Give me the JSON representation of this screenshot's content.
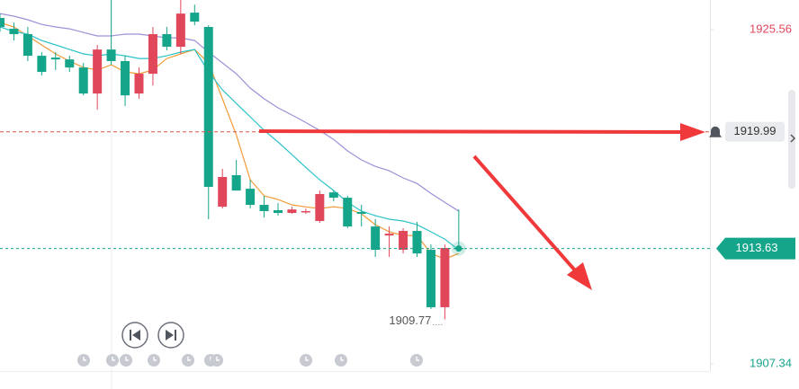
{
  "chart_data": {
    "type": "candlestick",
    "up_color": "#e0475b",
    "down_color": "#14a58b",
    "ylim": [
      1906.95,
      1927.18
    ],
    "yticks": [
      1907.34,
      1925.56
    ],
    "open": [
      1926.2,
      1925.61,
      1925.32,
      1924.14,
      1924.04,
      1923.94,
      1923.5,
      1922.08,
      1924.48,
      1923.85,
      1922.08,
      1923.16,
      1925.32,
      1924.63,
      1926.49,
      1925.71,
      1915.91,
      1917.63,
      1916.89,
      1916.01,
      1915.72,
      1915.57,
      1915.62,
      1915.13,
      1916.69,
      1916.4,
      1915.62,
      1914.83,
      1914.34,
      1913.56,
      1914.59,
      1913.56,
      1910.43,
      1913.66
    ],
    "high": [
      1926.44,
      1925.95,
      1925.71,
      1924.34,
      1924.34,
      1924.14,
      1923.75,
      1924.73,
      1927.18,
      1924.14,
      1923.5,
      1925.71,
      1925.71,
      1927.18,
      1926.93,
      1925.8,
      1917.97,
      1918.46,
      1917.38,
      1916.5,
      1916.11,
      1915.91,
      1915.81,
      1916.79,
      1916.79,
      1916.5,
      1916.01,
      1915.23,
      1914.83,
      1914.74,
      1915.08,
      1913.85,
      1913.85,
      1915.76
    ],
    "low": [
      1925.46,
      1924.97,
      1923.85,
      1923.06,
      1923.36,
      1923.26,
      1921.98,
      1921.2,
      1923.65,
      1921.4,
      1921.79,
      1922.52,
      1924.43,
      1924.24,
      1925.8,
      1915.23,
      1915.81,
      1916.79,
      1915.81,
      1915.32,
      1915.42,
      1915.52,
      1915.52,
      1915.03,
      1916.2,
      1914.74,
      1914.83,
      1913.17,
      1913.17,
      1913.36,
      1913.17,
      1910.33,
      1909.77,
      1913.56
    ],
    "close": [
      1925.71,
      1925.32,
      1924.14,
      1923.26,
      1923.94,
      1923.5,
      1922.08,
      1924.48,
      1923.85,
      1921.98,
      1923.16,
      1925.32,
      1924.63,
      1926.44,
      1926.0,
      1916.99,
      1917.53,
      1916.79,
      1916.01,
      1915.67,
      1915.57,
      1915.76,
      1915.67,
      1916.6,
      1916.4,
      1914.83,
      1915.52,
      1913.56,
      1914.44,
      1914.59,
      1913.36,
      1910.43,
      1913.66,
      1913.63
    ],
    "lines": [
      {
        "color": "#f29b38",
        "values": [
          1925.95,
          1925.71,
          1925.22,
          1924.73,
          1924.24,
          1923.85,
          1923.5,
          1923.36,
          1923.65,
          1923.26,
          1923.16,
          1923.36,
          1923.99,
          1924.24,
          1924.48,
          1923.75,
          1921.79,
          1919.83,
          1917.38,
          1916.5,
          1916.3,
          1916.01,
          1915.9,
          1915.81,
          1915.91,
          1915.81,
          1915.52,
          1914.93,
          1914.54,
          1914.34,
          1914.34,
          1913.36,
          1913.06,
          1913.36
        ]
      },
      {
        "color": "#2cc3c9",
        "values": [
          1925.71,
          1925.46,
          1925.32,
          1924.97,
          1924.73,
          1924.48,
          1924.24,
          1924.14,
          1924.24,
          1924.14,
          1923.99,
          1923.99,
          1924.14,
          1924.34,
          1924.48,
          1923.26,
          1922.28,
          1921.54,
          1920.81,
          1920.07,
          1919.44,
          1918.75,
          1918.05,
          1917.38,
          1916.79,
          1916.15,
          1915.67,
          1915.42,
          1915.23,
          1915.13,
          1914.93,
          1914.54,
          1914.14,
          1913.56
        ]
      },
      {
        "color": "#a08fd6",
        "values": [
          1926.44,
          1926.3,
          1926.1,
          1925.85,
          1925.71,
          1925.61,
          1925.41,
          1925.22,
          1925.22,
          1925.32,
          1925.32,
          1925.22,
          1925.12,
          1925.12,
          1924.97,
          1924.34,
          1923.75,
          1923.16,
          1922.38,
          1921.79,
          1921.3,
          1920.91,
          1920.5,
          1920.07,
          1919.58,
          1918.95,
          1918.46,
          1918.11,
          1917.87,
          1917.48,
          1917.18,
          1916.64,
          1916.15,
          1915.67
        ]
      }
    ],
    "alert_price": 1919.99,
    "current_price": 1913.63,
    "low_label": 1909.77
  }
}
